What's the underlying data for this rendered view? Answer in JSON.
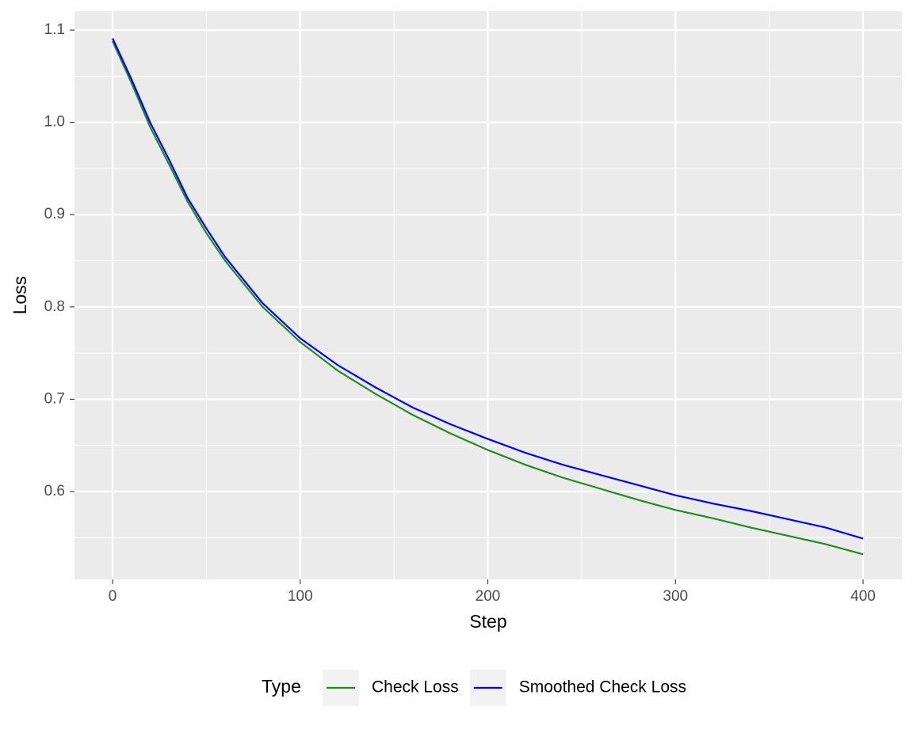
{
  "chart_data": {
    "type": "line",
    "x_label": "Step",
    "y_label": "Loss",
    "legend_title": "Type",
    "legend_position": "bottom",
    "grid": true,
    "x": [
      0,
      10,
      20,
      30,
      40,
      50,
      60,
      80,
      100,
      120,
      140,
      160,
      180,
      200,
      220,
      240,
      260,
      280,
      300,
      320,
      340,
      360,
      380,
      400
    ],
    "series": [
      {
        "name": "Check Loss",
        "color": "#228b22",
        "values": [
          1.088,
          1.043,
          0.995,
          0.955,
          0.914,
          0.88,
          0.85,
          0.8,
          0.762,
          0.731,
          0.706,
          0.683,
          0.663,
          0.645,
          0.629,
          0.615,
          0.603,
          0.591,
          0.58,
          0.571,
          0.561,
          0.552,
          0.543,
          0.532
        ]
      },
      {
        "name": "Smoothed Check Loss",
        "color": "#0000ff",
        "values": [
          1.091,
          1.047,
          1.0,
          0.96,
          0.918,
          0.885,
          0.854,
          0.804,
          0.766,
          0.737,
          0.713,
          0.691,
          0.673,
          0.657,
          0.642,
          0.629,
          0.618,
          0.607,
          0.596,
          0.587,
          0.579,
          0.57,
          0.561,
          0.549
        ]
      }
    ],
    "xlim": [
      -20.3,
      420.7
    ],
    "ylim": [
      0.5048,
      1.1206
    ],
    "xticks": [
      0,
      100,
      200,
      300,
      400
    ],
    "yticks": [
      0.6,
      0.7,
      0.8,
      0.9,
      {
        "value": 1.0,
        "label": "1.0"
      },
      1.1
    ],
    "x_minor_ticks": [
      50,
      150,
      250,
      350
    ],
    "y_minor_ticks": [
      0.55,
      0.65,
      0.75,
      0.85,
      0.95,
      1.05
    ]
  }
}
